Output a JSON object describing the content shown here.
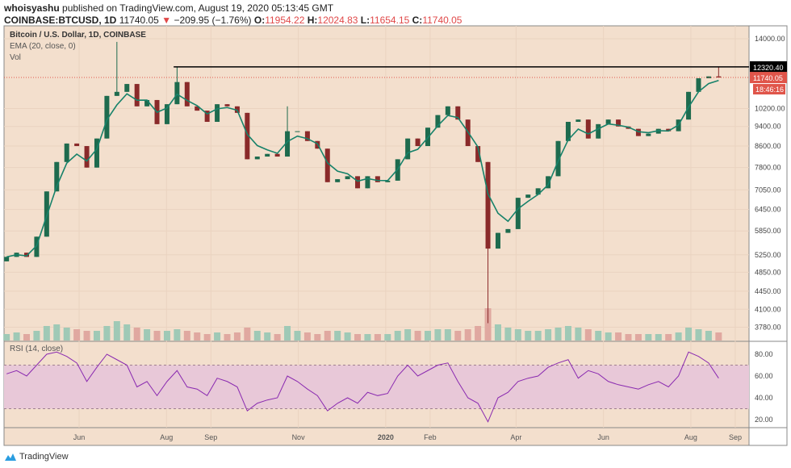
{
  "header": {
    "author": "whoisyashu",
    "published": "published on TradingView.com, August 19, 2020 05:13:45 GMT",
    "symbol": "COINBASE:BTCUSD, 1D",
    "last": "11740.05",
    "change": "−209.95 (−1.76%)",
    "o_label": "O:",
    "o": "11954.22",
    "h_label": "H:",
    "h": "12024.83",
    "l_label": "L:",
    "l": "11654.15",
    "c_label": "C:",
    "c": "11740.05"
  },
  "legend": {
    "title": "Bitcoin / U.S. Dollar, 1D, COINBASE",
    "ema": "EMA (20, close, 0)",
    "vol": "Vol",
    "rsi": "RSI (14, close)"
  },
  "brand": "TradingView",
  "colors": {
    "background": "#f3dfcd",
    "up": "#1e6b4e",
    "down": "#8a2a2a",
    "ema": "#17826a",
    "rsi": "#8a2ab0",
    "rsi_band": "#e8c8d8",
    "last_price": "#e0554a",
    "level_line": "#000000"
  },
  "chart_data": {
    "type": "candlestick",
    "title": "Bitcoin / U.S. Dollar, 1D, COINBASE",
    "scale": "log",
    "ylim": [
      3700,
      14500
    ],
    "price_ticks": [
      "14000.00",
      "10200.00",
      "9400.00",
      "8600.00",
      "7800.00",
      "7050.00",
      "6450.00",
      "5850.00",
      "5250.00",
      "4850.00",
      "4450.00",
      "4100.00",
      "3780.00"
    ],
    "horizontal_level": {
      "value": 12320.4,
      "label": "12320.40",
      "from": "2019-08-06"
    },
    "last_price": {
      "value": 11740.05,
      "label": "11740.05",
      "countdown": "18:46:16"
    },
    "start": "2019-04-08",
    "interval": "weekly (approximation of daily bars)",
    "close": [
      5200,
      5300,
      5200,
      5700,
      7000,
      8000,
      8700,
      8600,
      7800,
      8900,
      10800,
      11000,
      11400,
      10300,
      10600,
      9500,
      10400,
      11500,
      10300,
      10100,
      9600,
      10400,
      10300,
      10000,
      8100,
      8200,
      8300,
      8200,
      9200,
      9200,
      8800,
      8500,
      7300,
      7400,
      7500,
      7100,
      7500,
      7300,
      7350,
      8100,
      8900,
      8600,
      9350,
      9900,
      10300,
      9700,
      8600,
      8000,
      5400,
      5800,
      5900,
      6800,
      6900,
      7100,
      7500,
      8800,
      9600,
      9700,
      8900,
      9500,
      9700,
      9400,
      9300,
      9000,
      9100,
      9300,
      9200,
      9700,
      11000,
      11700,
      11800,
      11740
    ],
    "extremes": [
      {
        "week": 11,
        "high": 13800
      },
      {
        "week": 17,
        "high": 12320.4
      },
      {
        "week": 28,
        "high": 10300
      },
      {
        "week": 48,
        "low": 3850
      },
      {
        "week": 71,
        "high": 12320.4
      }
    ],
    "volume_relative": [
      0.2,
      0.25,
      0.2,
      0.3,
      0.45,
      0.5,
      0.4,
      0.35,
      0.3,
      0.3,
      0.45,
      0.6,
      0.5,
      0.4,
      0.35,
      0.3,
      0.3,
      0.35,
      0.3,
      0.25,
      0.2,
      0.25,
      0.2,
      0.25,
      0.4,
      0.3,
      0.25,
      0.2,
      0.45,
      0.3,
      0.25,
      0.2,
      0.3,
      0.3,
      0.25,
      0.2,
      0.2,
      0.2,
      0.2,
      0.3,
      0.35,
      0.3,
      0.3,
      0.35,
      0.35,
      0.3,
      0.35,
      0.45,
      1.0,
      0.5,
      0.4,
      0.35,
      0.3,
      0.3,
      0.35,
      0.4,
      0.45,
      0.4,
      0.35,
      0.3,
      0.25,
      0.25,
      0.2,
      0.2,
      0.2,
      0.2,
      0.2,
      0.25,
      0.4,
      0.35,
      0.3,
      0.25
    ],
    "ema_period": 20,
    "rsi": {
      "period": 14,
      "ticks": [
        "80.00",
        "60.00",
        "40.00",
        "20.00"
      ],
      "band": [
        30,
        70
      ],
      "values": [
        62,
        65,
        60,
        70,
        80,
        82,
        78,
        72,
        55,
        68,
        80,
        75,
        70,
        50,
        55,
        42,
        55,
        65,
        50,
        48,
        42,
        58,
        55,
        50,
        28,
        35,
        38,
        40,
        60,
        55,
        48,
        42,
        28,
        35,
        40,
        35,
        45,
        42,
        44,
        60,
        70,
        60,
        65,
        70,
        72,
        55,
        40,
        35,
        18,
        40,
        45,
        55,
        58,
        60,
        68,
        72,
        75,
        58,
        65,
        62,
        55,
        52,
        50,
        48,
        52,
        55,
        50,
        60,
        82,
        78,
        72,
        58
      ]
    },
    "x_ticks": [
      {
        "label": "Jun",
        "date": "2019-06-01"
      },
      {
        "label": "Aug",
        "date": "2019-08-01"
      },
      {
        "label": "Sep",
        "date": "2019-09-01"
      },
      {
        "label": "Nov",
        "date": "2019-11-01"
      },
      {
        "label": "2020",
        "date": "2020-01-01"
      },
      {
        "label": "Feb",
        "date": "2020-02-01"
      },
      {
        "label": "Apr",
        "date": "2020-04-01"
      },
      {
        "label": "Jun",
        "date": "2020-06-01"
      },
      {
        "label": "Aug",
        "date": "2020-08-01"
      },
      {
        "label": "Sep",
        "date": "2020-09-01"
      }
    ]
  }
}
